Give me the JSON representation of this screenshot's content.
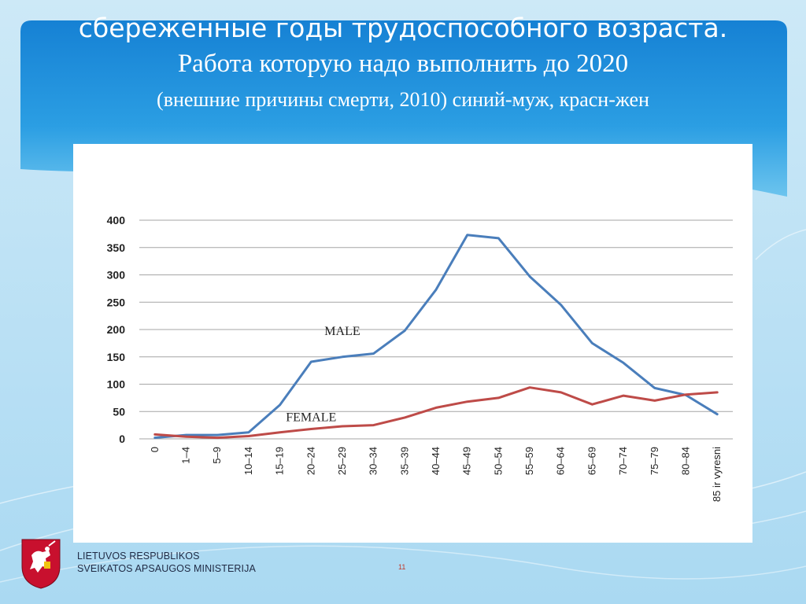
{
  "slide": {
    "title_line1": "сбереженные годы трудоспособного возраста.",
    "title_line2": "Работа которую надо выполнить до 2020",
    "title_line3": "(внешние причины смерти, 2010) синий-муж, красн-жен",
    "ministry_line1": "LIETUVOS RESPUBLIKOS",
    "ministry_line2": "SVEIKATOS APSAUGOS MINISTERIJA",
    "page_number": "11",
    "colors": {
      "header_blue": "#1e8fd8",
      "male": "#4a7ebb",
      "female": "#be4b48"
    },
    "logo_icon": "coat-of-arms-icon"
  },
  "chart_data": {
    "type": "line",
    "title": "",
    "xlabel": "",
    "ylabel": "",
    "ylim": [
      0,
      400
    ],
    "yticks": [
      0,
      50,
      100,
      150,
      200,
      250,
      300,
      350,
      400
    ],
    "grid": true,
    "legend": "none",
    "categories": [
      "0",
      "1–4",
      "5–9",
      "10–14",
      "15–19",
      "20–24",
      "25–29",
      "30–34",
      "35–39",
      "40–44",
      "45–49",
      "50–54",
      "55–59",
      "60–64",
      "65–69",
      "70–74",
      "75–79",
      "80–84",
      "85 ir vyresni"
    ],
    "series": [
      {
        "name": "MALE",
        "color": "#4a7ebb",
        "values": [
          2,
          7,
          7,
          12,
          62,
          141,
          150,
          156,
          198,
          273,
          373,
          367,
          297,
          245,
          175,
          139,
          93,
          80,
          45
        ]
      },
      {
        "name": "FEMALE",
        "color": "#be4b48",
        "values": [
          8,
          4,
          2,
          5,
          12,
          18,
          23,
          25,
          39,
          57,
          68,
          75,
          94,
          85,
          63,
          79,
          70,
          81,
          85
        ]
      }
    ]
  }
}
